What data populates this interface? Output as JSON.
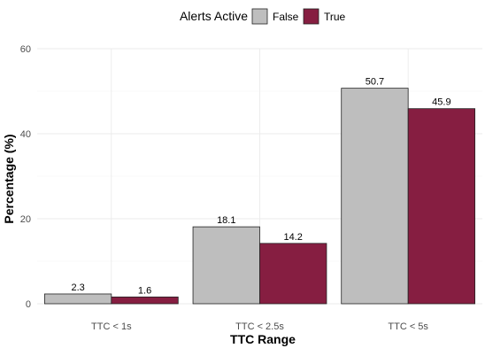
{
  "chart_data": {
    "type": "bar",
    "xlabel": "TTC Range",
    "ylabel": "Percentage (%)",
    "categories": [
      "TTC < 1s",
      "TTC < 2.5s",
      "TTC < 5s"
    ],
    "series": [
      {
        "name": "False",
        "values": [
          2.3,
          18.1,
          50.7
        ],
        "color": "#bebebe"
      },
      {
        "name": "True",
        "values": [
          1.6,
          14.2,
          45.9
        ],
        "color": "#861e41"
      }
    ],
    "data_labels": [
      [
        "2.3",
        "18.1",
        "50.7"
      ],
      [
        "1.6",
        "14.2",
        "45.9"
      ]
    ],
    "ylim": [
      0,
      60
    ],
    "yticks": [
      0,
      20,
      40,
      60
    ],
    "legend": {
      "title": "Alerts Active",
      "position": "top"
    },
    "grid": true
  }
}
